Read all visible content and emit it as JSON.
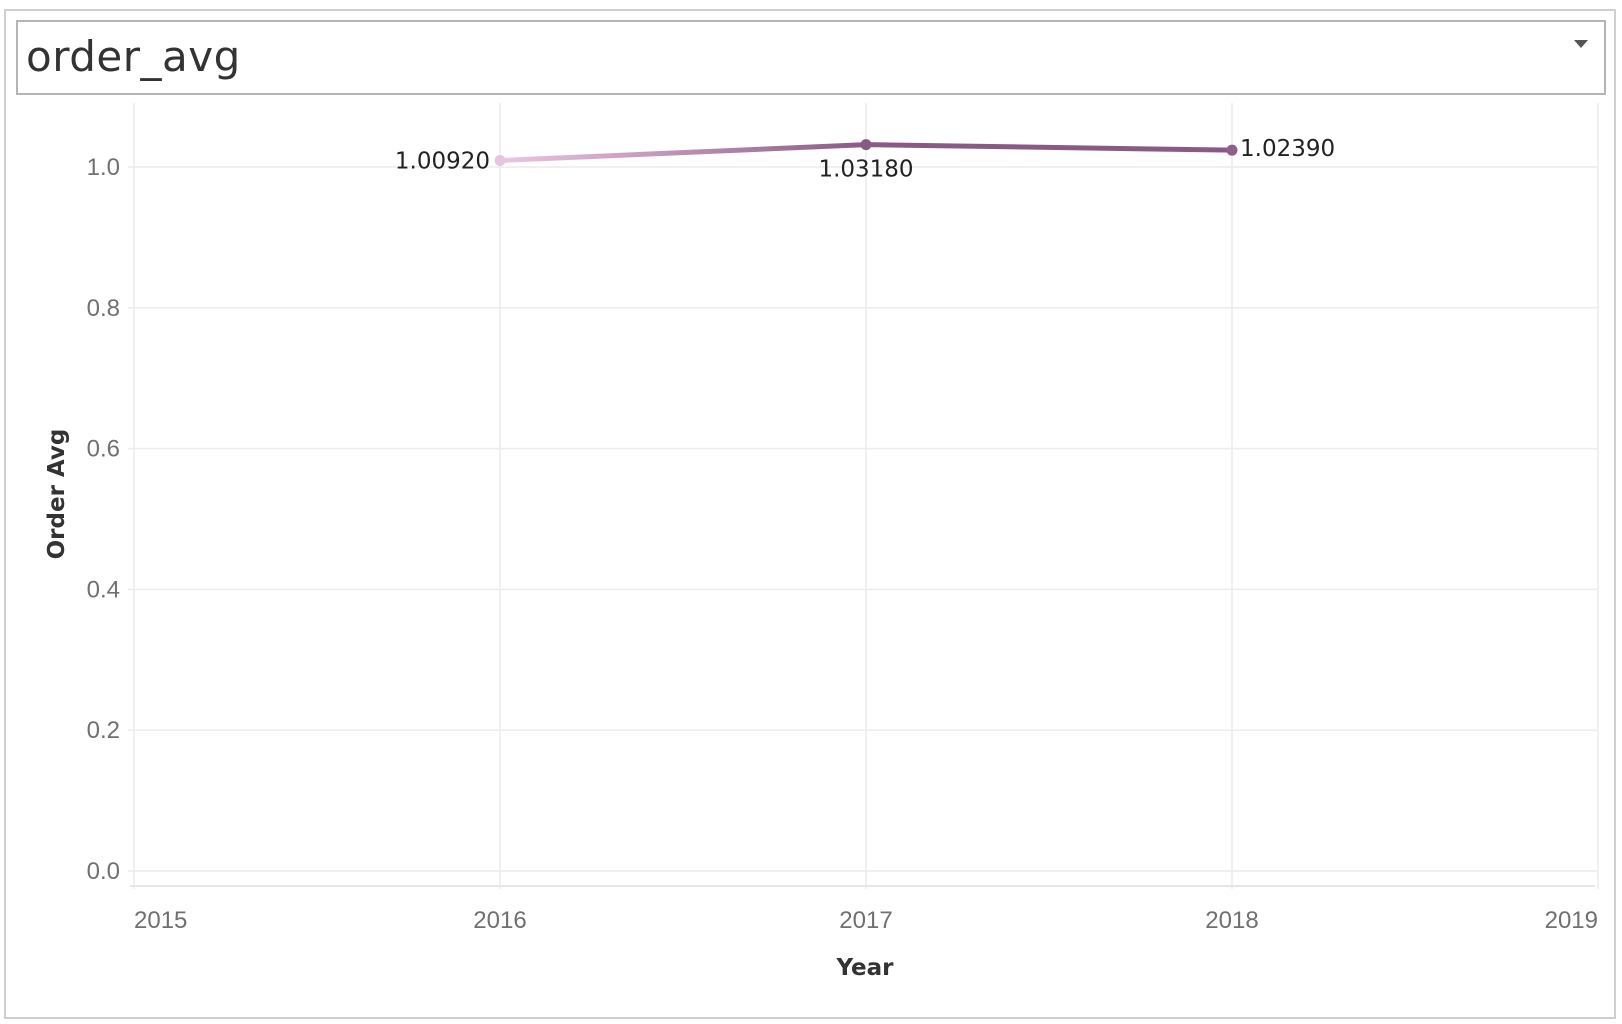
{
  "selector": {
    "value": "order_avg"
  },
  "chart_data": {
    "type": "line",
    "xlabel": "Year",
    "ylabel": "Order Avg",
    "x_ticks": [
      "2015",
      "2016",
      "2017",
      "2018",
      "2019"
    ],
    "y_ticks": [
      "0.0",
      "0.2",
      "0.4",
      "0.6",
      "0.8",
      "1.0"
    ],
    "xlim": [
      2015,
      2019
    ],
    "ylim": [
      0,
      1.0
    ],
    "grid": true,
    "points": [
      {
        "x": 2016,
        "y": 1.0092,
        "label": "1.00920",
        "color": "#e8c4e0"
      },
      {
        "x": 2017,
        "y": 1.0318,
        "label": "1.03180",
        "color": "#8a5a86"
      },
      {
        "x": 2018,
        "y": 1.0239,
        "label": "1.02390",
        "color": "#8f5f8c"
      }
    ],
    "line_gradient": [
      "#ecc6e3",
      "#8a5a86"
    ]
  }
}
